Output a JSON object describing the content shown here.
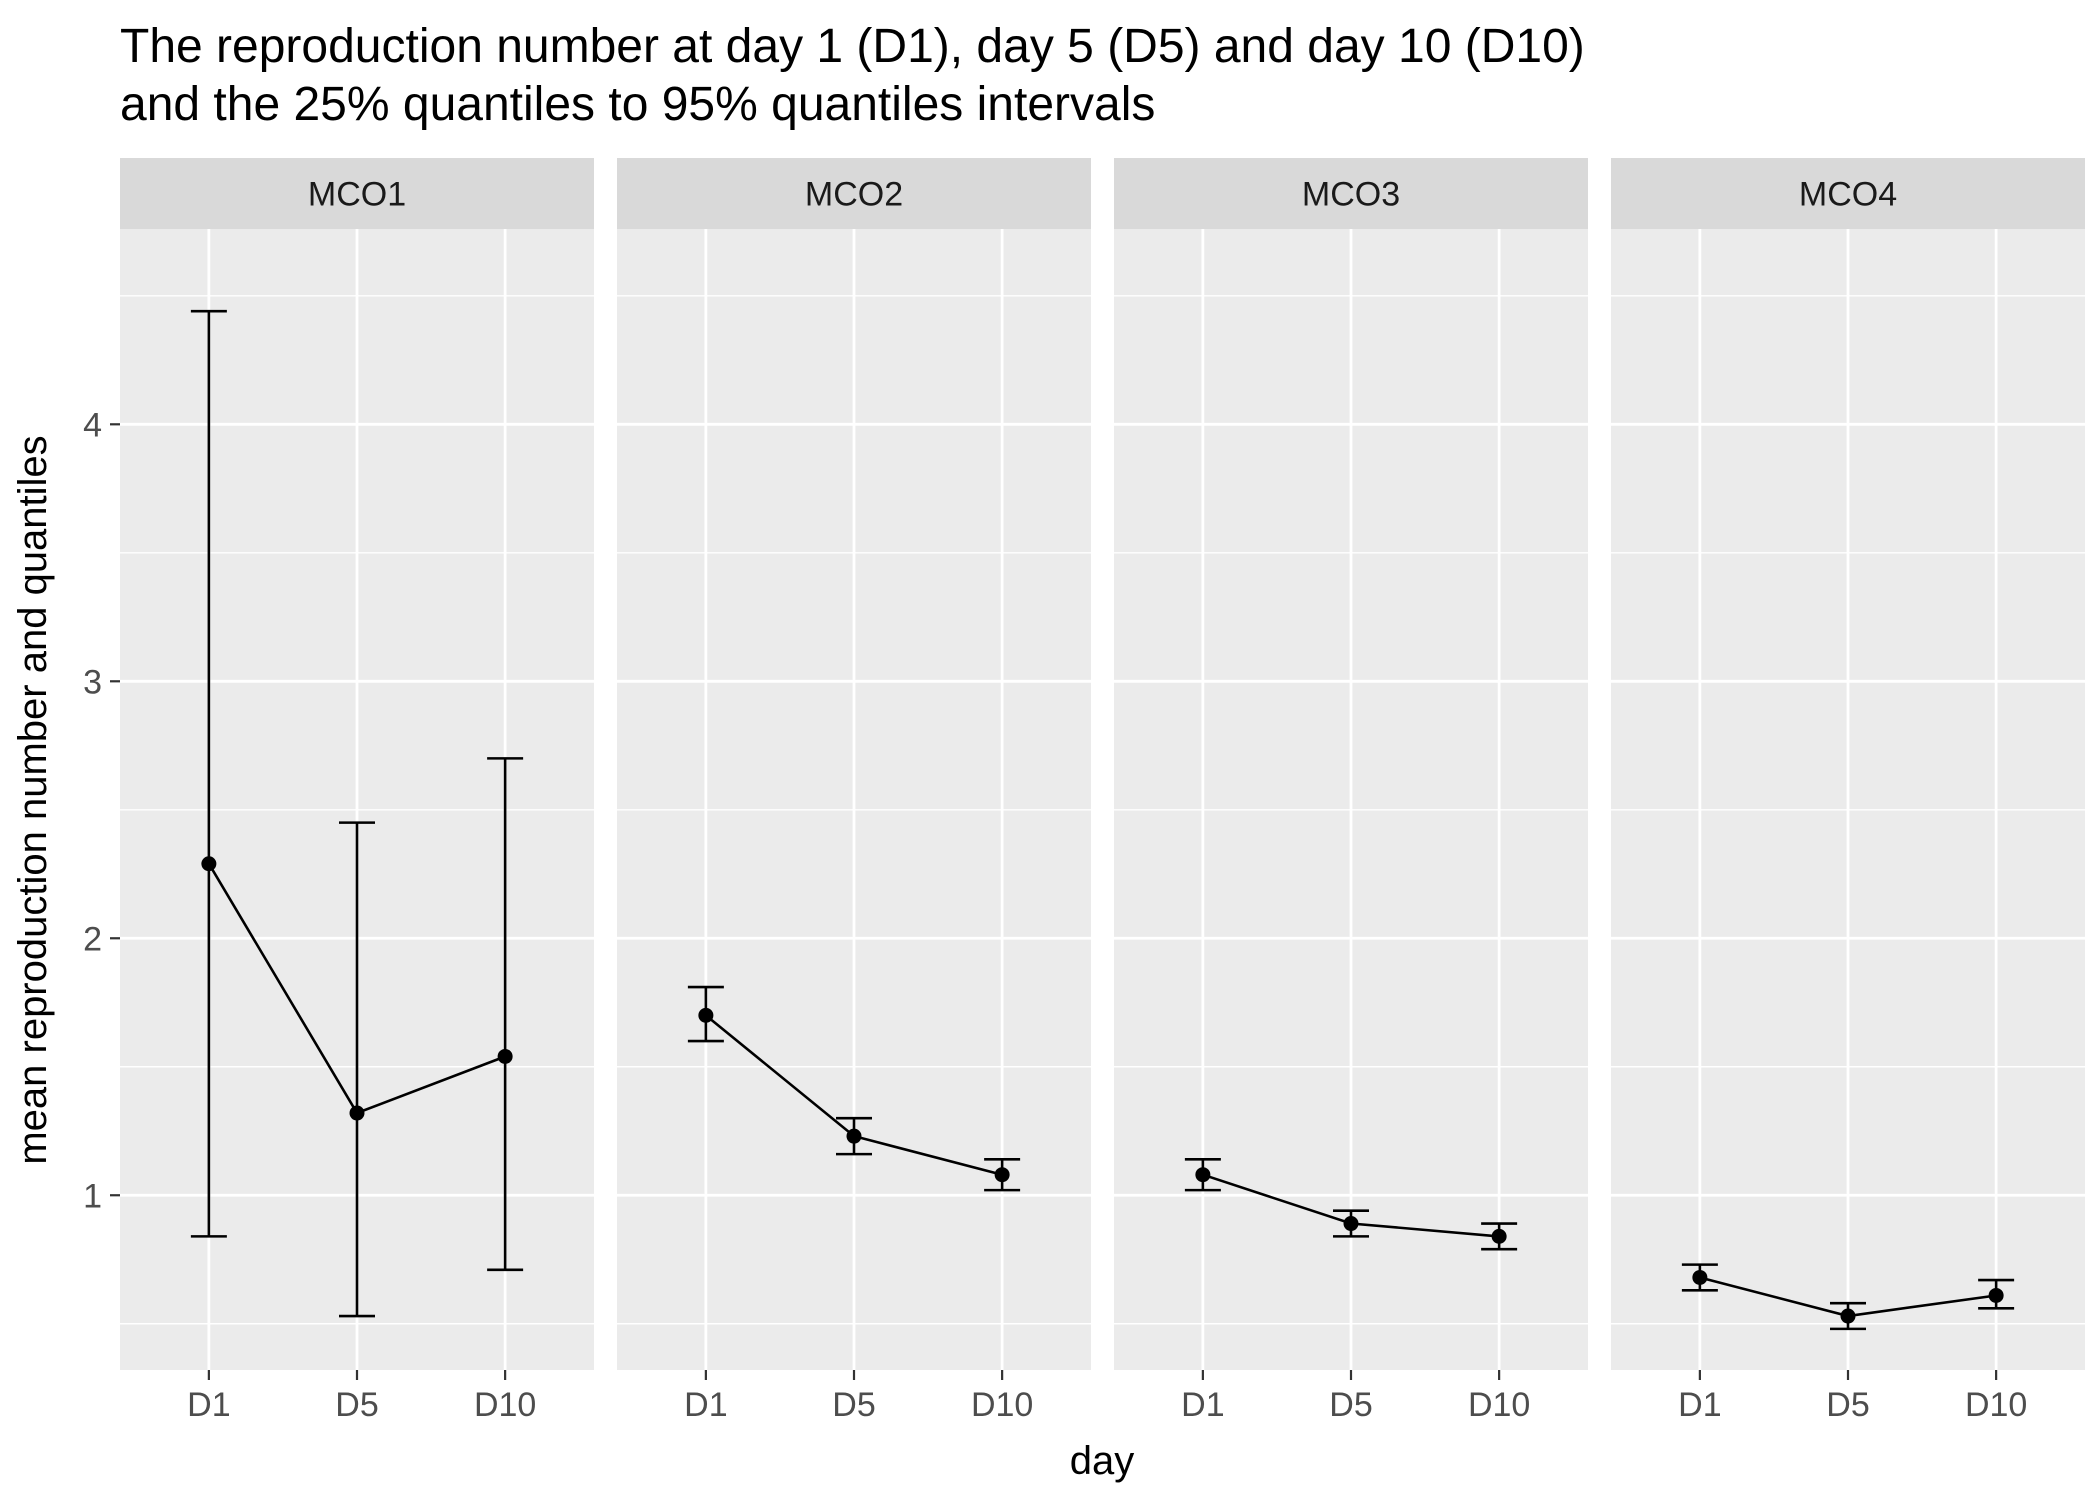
{
  "chart_data": {
    "type": "line",
    "title_lines": [
      "The reproduction number at day 1 (D1), day 5 (D5) and day 10 (D10)",
      "and the 25% quantiles to 95% quantiles intervals"
    ],
    "xlabel": "day",
    "ylabel": "mean reproduction number and quantiles",
    "categories": [
      "D1",
      "D5",
      "D10"
    ],
    "ylim": [
      0.32,
      4.76
    ],
    "yticks": [
      1,
      2,
      3,
      4
    ],
    "facets": [
      {
        "name": "MCO1",
        "mean": [
          2.29,
          1.32,
          1.54
        ],
        "lower": [
          0.84,
          0.53,
          0.71
        ],
        "upper": [
          4.44,
          2.45,
          2.7
        ]
      },
      {
        "name": "MCO2",
        "mean": [
          1.7,
          1.23,
          1.08
        ],
        "lower": [
          1.6,
          1.16,
          1.02
        ],
        "upper": [
          1.81,
          1.3,
          1.14
        ]
      },
      {
        "name": "MCO3",
        "mean": [
          1.08,
          0.89,
          0.84
        ],
        "lower": [
          1.02,
          0.84,
          0.79
        ],
        "upper": [
          1.14,
          0.94,
          0.89
        ]
      },
      {
        "name": "MCO4",
        "mean": [
          0.68,
          0.53,
          0.61
        ],
        "lower": [
          0.63,
          0.48,
          0.56
        ],
        "upper": [
          0.73,
          0.58,
          0.67
        ]
      }
    ],
    "colors": {
      "panel_bg": "#EBEBEB",
      "strip_bg": "#D9D9D9",
      "grid": "#FFFFFF",
      "line": "#000000",
      "tick_label": "#4D4D4D",
      "strip_text": "#1A1A1A"
    },
    "grid": true,
    "legend": "none"
  }
}
